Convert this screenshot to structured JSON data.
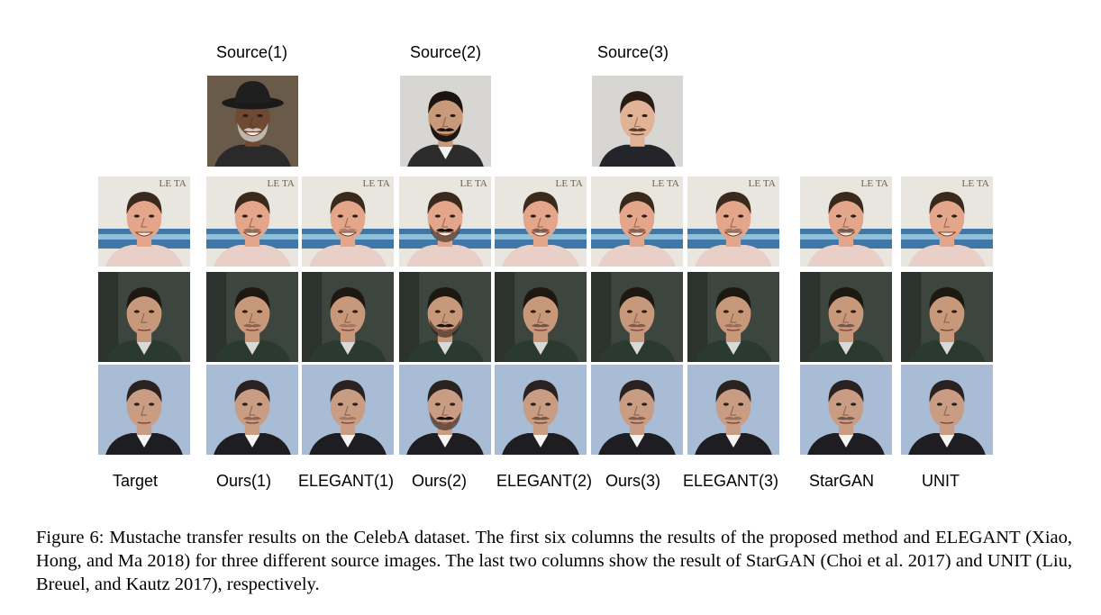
{
  "figure": {
    "source_labels": [
      "Source(1)",
      "Source(2)",
      "Source(3)"
    ],
    "column_labels": [
      "Target",
      "Ours(1)",
      "ELEGANT(1)",
      "Ours(2)",
      "ELEGANT(2)",
      "Ours(3)",
      "ELEGANT(3)",
      "StarGAN",
      "UNIT"
    ],
    "photo_sign_text": "LE TA",
    "caption": "Figure 6: Mustache transfer results on the CelebA dataset. The first six columns the results of the proposed method and ELEGANT (Xiao, Hong, and Ma 2018) for three different source images. The last two columns show the result of StarGAN (Choi et al. 2017) and UNIT (Liu, Breuel, and Kautz 2017), respectively."
  }
}
